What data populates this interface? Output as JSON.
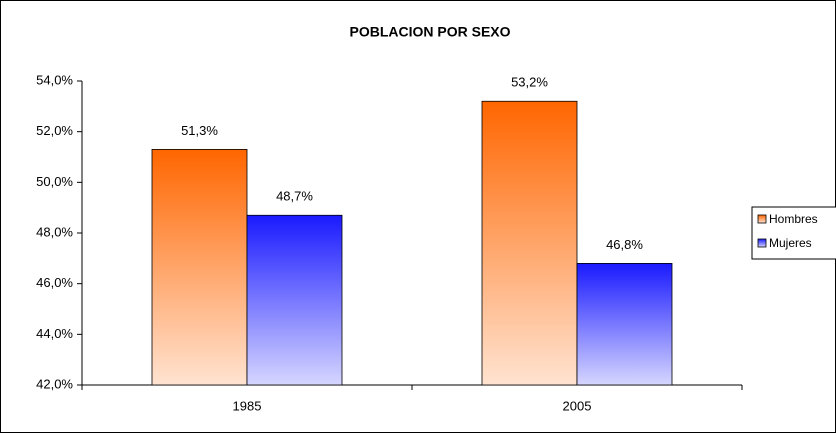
{
  "chart_data": {
    "type": "bar",
    "title": "POBLACION POR SEXO",
    "categories": [
      "1985",
      "2005"
    ],
    "series": [
      {
        "name": "Hombres",
        "color": "#ff6600",
        "values": [
          51.3,
          53.2
        ],
        "value_labels": [
          "51,3%",
          "53,2%"
        ]
      },
      {
        "name": "Mujeres",
        "color": "#1a1aff",
        "values": [
          48.7,
          46.8
        ],
        "value_labels": [
          "48,7%",
          "46,8%"
        ]
      }
    ],
    "ylim": [
      42,
      54
    ],
    "yticks": [
      {
        "value": 42,
        "label": "42,0%"
      },
      {
        "value": 44,
        "label": "44,0%"
      },
      {
        "value": 46,
        "label": "46,0%"
      },
      {
        "value": 48,
        "label": "48,0%"
      },
      {
        "value": 50,
        "label": "50,0%"
      },
      {
        "value": 52,
        "label": "52,0%"
      },
      {
        "value": 54,
        "label": "54,0%"
      }
    ],
    "grid": false,
    "legend": "right"
  }
}
